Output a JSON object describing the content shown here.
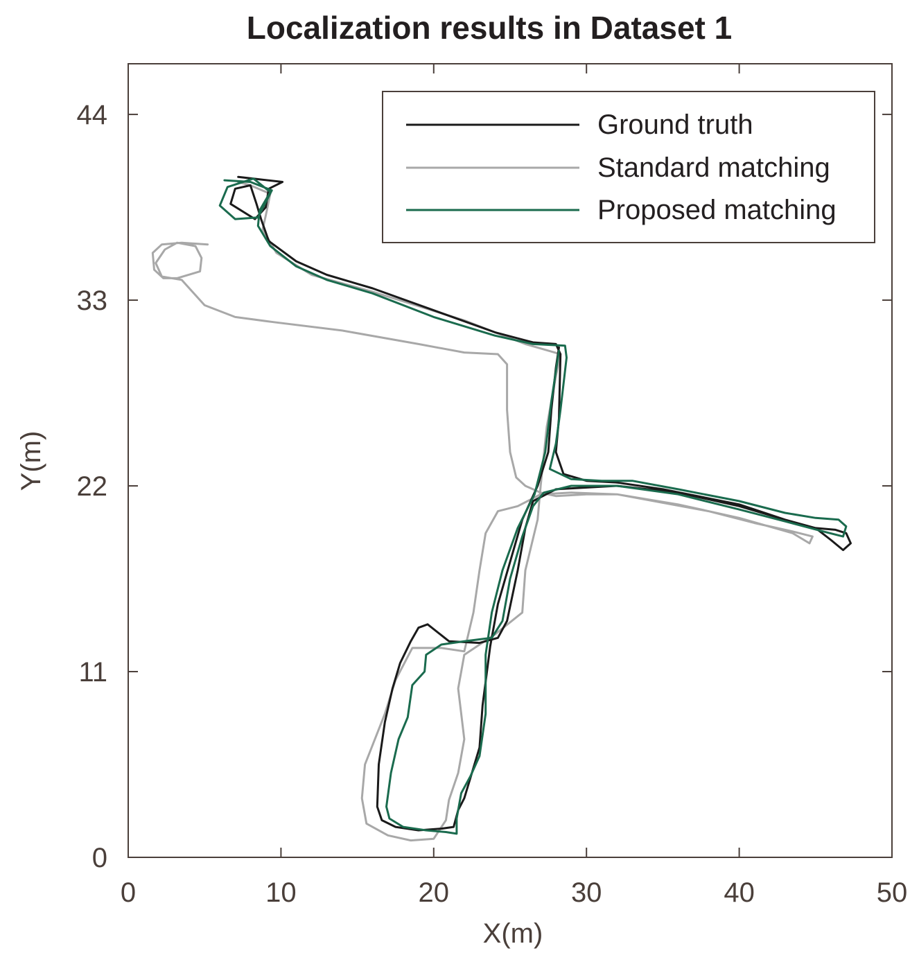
{
  "chart_data": {
    "type": "line",
    "title": "Localization results in Dataset 1",
    "xlabel": "X(m)",
    "ylabel": "Y(m)",
    "xlim": [
      0,
      50
    ],
    "ylim": [
      0,
      47
    ],
    "xticks": [
      0,
      10,
      20,
      30,
      40,
      50
    ],
    "yticks": [
      0,
      11,
      22,
      33,
      44
    ],
    "grid": false,
    "legend_position": "top-right",
    "series": [
      {
        "name": "Ground truth",
        "color": "#1a1a1a",
        "points": [
          [
            7.2,
            40.3
          ],
          [
            10.1,
            40.0
          ],
          [
            9.2,
            39.6
          ],
          [
            9.0,
            38.5
          ],
          [
            8.3,
            37.8
          ],
          [
            6.7,
            38.7
          ],
          [
            7.0,
            39.6
          ],
          [
            8.0,
            39.8
          ],
          [
            8.4,
            38.7
          ],
          [
            8.7,
            37.8
          ],
          [
            9.2,
            36.5
          ],
          [
            11.0,
            35.3
          ],
          [
            13.0,
            34.5
          ],
          [
            16.0,
            33.7
          ],
          [
            20.0,
            32.4
          ],
          [
            24.0,
            31.1
          ],
          [
            26.5,
            30.5
          ],
          [
            28.0,
            30.4
          ],
          [
            28.3,
            29.8
          ],
          [
            28.2,
            26.0
          ],
          [
            28.0,
            24.0
          ],
          [
            28.5,
            22.7
          ],
          [
            30.0,
            22.3
          ],
          [
            32.0,
            22.2
          ],
          [
            35.0,
            21.8
          ],
          [
            40.0,
            20.9
          ],
          [
            43.0,
            20.0
          ],
          [
            45.0,
            19.5
          ],
          [
            46.3,
            19.4
          ],
          [
            47.0,
            19.2
          ],
          [
            47.3,
            18.6
          ],
          [
            46.8,
            18.2
          ],
          [
            46.0,
            18.8
          ],
          [
            45.0,
            19.5
          ],
          [
            43.0,
            20.0
          ],
          [
            40.0,
            20.8
          ],
          [
            36.0,
            21.6
          ],
          [
            32.0,
            22.0
          ],
          [
            28.0,
            21.8
          ],
          [
            26.5,
            21.1
          ],
          [
            26.0,
            19.5
          ],
          [
            25.5,
            17.0
          ],
          [
            24.8,
            14.0
          ],
          [
            24.2,
            13.0
          ],
          [
            23.0,
            12.7
          ],
          [
            21.0,
            12.8
          ],
          [
            19.6,
            13.8
          ],
          [
            19.0,
            13.6
          ],
          [
            18.5,
            12.8
          ],
          [
            17.8,
            11.5
          ],
          [
            17.3,
            10.0
          ],
          [
            16.8,
            8.0
          ],
          [
            16.4,
            5.5
          ],
          [
            16.3,
            3.0
          ],
          [
            16.6,
            2.2
          ],
          [
            17.5,
            1.8
          ],
          [
            19.0,
            1.6
          ],
          [
            20.5,
            1.7
          ],
          [
            21.3,
            1.8
          ],
          [
            21.6,
            2.8
          ],
          [
            22.0,
            3.5
          ],
          [
            22.5,
            5.0
          ],
          [
            23.0,
            6.5
          ],
          [
            23.2,
            9.0
          ],
          [
            23.7,
            12.5
          ],
          [
            24.2,
            15.0
          ],
          [
            25.0,
            17.5
          ],
          [
            25.8,
            20.0
          ],
          [
            26.8,
            22.0
          ],
          [
            27.5,
            24.0
          ],
          [
            27.7,
            26.5
          ],
          [
            28.0,
            29.0
          ],
          [
            28.2,
            30.2
          ]
        ]
      },
      {
        "name": "Standard matching",
        "color": "#a8a8a8",
        "points": [
          [
            5.2,
            36.3
          ],
          [
            3.5,
            36.4
          ],
          [
            2.2,
            36.3
          ],
          [
            1.6,
            35.8
          ],
          [
            1.7,
            34.8
          ],
          [
            2.3,
            34.3
          ],
          [
            3.2,
            34.3
          ],
          [
            4.7,
            34.7
          ],
          [
            4.8,
            35.5
          ],
          [
            4.4,
            36.2
          ],
          [
            3.2,
            36.4
          ],
          [
            2.4,
            36.0
          ],
          [
            1.8,
            35.2
          ],
          [
            2.2,
            34.4
          ],
          [
            3.5,
            34.2
          ],
          [
            5.0,
            32.7
          ],
          [
            7.0,
            32.0
          ],
          [
            9.5,
            31.7
          ],
          [
            14.0,
            31.2
          ],
          [
            19.0,
            30.4
          ],
          [
            22.0,
            29.9
          ],
          [
            24.2,
            29.8
          ],
          [
            24.8,
            29.2
          ],
          [
            24.8,
            26.5
          ],
          [
            25.0,
            24.0
          ],
          [
            25.4,
            22.5
          ],
          [
            26.0,
            22.0
          ],
          [
            27.0,
            21.6
          ],
          [
            28.0,
            21.4
          ],
          [
            30.0,
            21.5
          ],
          [
            32.0,
            21.5
          ],
          [
            35.0,
            21.0
          ],
          [
            38.0,
            20.5
          ],
          [
            41.0,
            19.8
          ],
          [
            43.5,
            19.3
          ],
          [
            44.8,
            19.0
          ],
          [
            44.6,
            18.6
          ],
          [
            43.5,
            19.2
          ],
          [
            40.0,
            20.1
          ],
          [
            36.0,
            20.9
          ],
          [
            32.0,
            21.5
          ],
          [
            29.0,
            21.6
          ],
          [
            27.0,
            21.5
          ],
          [
            25.5,
            20.8
          ],
          [
            24.2,
            20.5
          ],
          [
            23.4,
            19.2
          ],
          [
            23.0,
            17.0
          ],
          [
            22.6,
            14.5
          ],
          [
            22.0,
            12.2
          ],
          [
            20.5,
            12.4
          ],
          [
            18.6,
            12.4
          ],
          [
            17.5,
            10.5
          ],
          [
            16.8,
            8.5
          ],
          [
            15.5,
            5.5
          ],
          [
            15.3,
            3.5
          ],
          [
            15.6,
            2.0
          ],
          [
            17.0,
            1.3
          ],
          [
            18.5,
            1.0
          ],
          [
            20.0,
            1.1
          ],
          [
            20.8,
            2.2
          ],
          [
            21.0,
            3.4
          ],
          [
            21.6,
            5.0
          ],
          [
            22.0,
            7.0
          ],
          [
            21.6,
            10.0
          ],
          [
            22.0,
            12.0
          ],
          [
            24.0,
            13.2
          ],
          [
            25.8,
            14.5
          ],
          [
            26.0,
            17.0
          ],
          [
            26.8,
            20.0
          ],
          [
            27.0,
            22.0
          ],
          [
            27.4,
            25.5
          ],
          [
            28.0,
            28.5
          ],
          [
            28.3,
            29.8
          ],
          [
            26.0,
            30.4
          ],
          [
            22.0,
            31.8
          ],
          [
            16.0,
            33.5
          ],
          [
            12.0,
            34.5
          ],
          [
            9.7,
            35.8
          ],
          [
            8.8,
            37.2
          ],
          [
            9.0,
            38.0
          ],
          [
            9.3,
            39.3
          ],
          [
            8.0,
            39.8
          ],
          [
            7.2,
            40.0
          ]
        ]
      },
      {
        "name": "Proposed matching",
        "color": "#1a6b4e",
        "points": [
          [
            6.3,
            40.1
          ],
          [
            8.0,
            40.0
          ],
          [
            9.4,
            39.5
          ],
          [
            9.0,
            38.8
          ],
          [
            8.5,
            37.9
          ],
          [
            7.0,
            37.8
          ],
          [
            6.0,
            38.6
          ],
          [
            6.5,
            39.7
          ],
          [
            8.2,
            40.2
          ],
          [
            9.3,
            39.4
          ],
          [
            8.6,
            38.3
          ],
          [
            8.5,
            37.4
          ],
          [
            9.3,
            36.2
          ],
          [
            11.0,
            35.0
          ],
          [
            13.0,
            34.2
          ],
          [
            16.0,
            33.4
          ],
          [
            20.0,
            32.0
          ],
          [
            24.0,
            30.9
          ],
          [
            26.5,
            30.4
          ],
          [
            28.6,
            30.3
          ],
          [
            28.7,
            29.6
          ],
          [
            28.3,
            26.5
          ],
          [
            28.0,
            24.5
          ],
          [
            27.6,
            23.0
          ],
          [
            29.0,
            22.4
          ],
          [
            31.0,
            22.3
          ],
          [
            33.0,
            22.3
          ],
          [
            36.0,
            21.8
          ],
          [
            40.0,
            21.1
          ],
          [
            43.0,
            20.4
          ],
          [
            45.0,
            20.1
          ],
          [
            46.5,
            20.0
          ],
          [
            47.0,
            19.6
          ],
          [
            46.8,
            19.0
          ],
          [
            45.5,
            19.3
          ],
          [
            43.0,
            19.9
          ],
          [
            40.0,
            20.6
          ],
          [
            36.0,
            21.5
          ],
          [
            32.0,
            22.0
          ],
          [
            29.0,
            22.0
          ],
          [
            27.2,
            21.6
          ],
          [
            26.5,
            20.8
          ],
          [
            25.8,
            19.0
          ],
          [
            25.0,
            16.5
          ],
          [
            24.5,
            14.0
          ],
          [
            23.8,
            13.0
          ],
          [
            22.0,
            12.8
          ],
          [
            20.5,
            12.6
          ],
          [
            19.5,
            12.0
          ],
          [
            19.4,
            11.0
          ],
          [
            18.6,
            10.2
          ],
          [
            18.3,
            8.3
          ],
          [
            17.7,
            7.0
          ],
          [
            17.2,
            5.0
          ],
          [
            16.9,
            3.0
          ],
          [
            17.1,
            2.3
          ],
          [
            18.0,
            1.8
          ],
          [
            19.5,
            1.6
          ],
          [
            20.8,
            1.5
          ],
          [
            21.5,
            1.4
          ],
          [
            21.5,
            2.3
          ],
          [
            21.8,
            3.8
          ],
          [
            22.4,
            4.8
          ],
          [
            23.0,
            6.0
          ],
          [
            23.4,
            8.5
          ],
          [
            23.4,
            12.0
          ],
          [
            23.8,
            14.5
          ],
          [
            24.5,
            17.0
          ],
          [
            25.5,
            19.5
          ],
          [
            26.6,
            21.5
          ],
          [
            27.3,
            24.0
          ],
          [
            27.7,
            27.0
          ],
          [
            28.2,
            30.0
          ]
        ]
      }
    ]
  }
}
